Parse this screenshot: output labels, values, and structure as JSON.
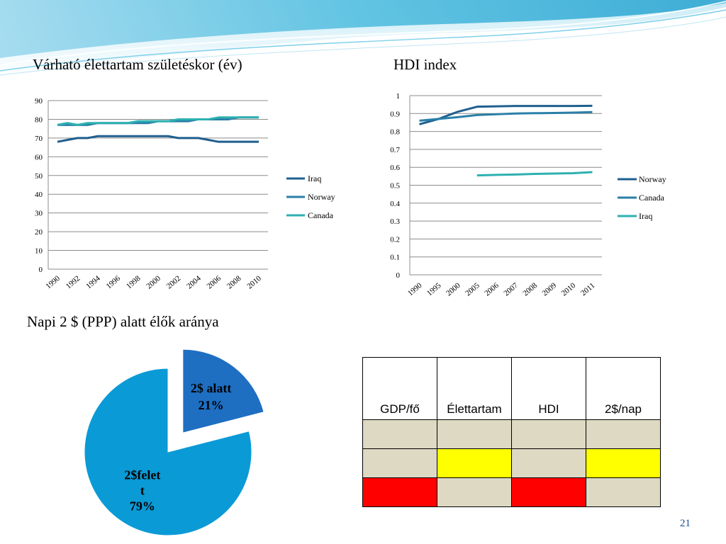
{
  "slide": {
    "title_life": "Várható élettartam születéskor (év)",
    "title_hdi": "HDI index",
    "title_pie": "Napi 2 $ (PPP) alatt élők aránya",
    "page_number": "21"
  },
  "chart_data": [
    {
      "type": "line",
      "xlabel": "",
      "ylabel": "",
      "ylim": [
        0,
        90
      ],
      "yticks": [
        "0",
        "10",
        "20",
        "30",
        "40",
        "50",
        "60",
        "70",
        "80",
        "90"
      ],
      "grid": true,
      "legend_position": "right",
      "x": [
        "1990",
        "1991",
        "1992",
        "1993",
        "1994",
        "1995",
        "1996",
        "1997",
        "1998",
        "1999",
        "2000",
        "2001",
        "2002",
        "2003",
        "2004",
        "2005",
        "2006",
        "2007",
        "2008",
        "2009",
        "2010"
      ],
      "xtick_labels": [
        "1990",
        "1992",
        "1994",
        "1996",
        "1998",
        "2000",
        "2002",
        "2004",
        "2006",
        "2008",
        "2010"
      ],
      "series": [
        {
          "name": "Iraq",
          "color": "#1f5f8f",
          "values": [
            68,
            69,
            70,
            70,
            71,
            71,
            71,
            71,
            71,
            71,
            71,
            71,
            70,
            70,
            70,
            69,
            68,
            68,
            68,
            68,
            68
          ]
        },
        {
          "name": "Norway",
          "color": "#2a7fa8",
          "values": [
            77,
            77,
            77,
            77,
            78,
            78,
            78,
            78,
            78,
            78,
            79,
            79,
            79,
            79,
            80,
            80,
            80,
            80,
            81,
            81,
            81
          ]
        },
        {
          "name": "Canada",
          "color": "#2eb0b0",
          "values": [
            77,
            78,
            77,
            78,
            78,
            78,
            78,
            78,
            79,
            79,
            79,
            79,
            80,
            80,
            80,
            80,
            81,
            81,
            81,
            81,
            81
          ]
        }
      ]
    },
    {
      "type": "line",
      "xlabel": "",
      "ylabel": "",
      "ylim": [
        0,
        1
      ],
      "yticks": [
        "0",
        "0.1",
        "0.2",
        "0.3",
        "0.4",
        "0.5",
        "0.6",
        "0.7",
        "0.8",
        "0.9",
        "1"
      ],
      "grid": true,
      "legend_position": "right",
      "categories": [
        "1990",
        "1995",
        "2000",
        "2005",
        "2006",
        "2007",
        "2008",
        "2009",
        "2010",
        "2011"
      ],
      "series": [
        {
          "name": "Norway",
          "color": "#1f5f8f",
          "values": [
            0.84,
            0.87,
            0.91,
            0.938,
            0.94,
            0.942,
            0.942,
            0.942,
            0.942,
            0.943
          ]
        },
        {
          "name": "Canada",
          "color": "#2a7fa8",
          "values": [
            0.86,
            0.87,
            0.88,
            0.892,
            0.896,
            0.9,
            0.902,
            0.903,
            0.905,
            0.908
          ]
        },
        {
          "name": "Iraq",
          "color": "#2eb0b0",
          "values": [
            null,
            null,
            null,
            0.555,
            0.558,
            0.56,
            0.563,
            0.565,
            0.567,
            0.573
          ]
        }
      ]
    },
    {
      "type": "pie",
      "title": "Napi 2 $ (PPP) alatt élők aránya",
      "slices": [
        {
          "label": "2$ alatt",
          "percent_label": "21%",
          "value": 21,
          "color": "#1e6fc2",
          "exploded": true
        },
        {
          "label": "2$felett",
          "percent_label": "79%",
          "value": 79,
          "color": "#0a9ad6",
          "exploded": false
        }
      ]
    }
  ],
  "table": {
    "headers": [
      "GDP/fő",
      "Élettartam",
      "HDI",
      "2$/nap"
    ],
    "rows": [
      [
        "beige",
        "beige",
        "beige",
        "beige"
      ],
      [
        "beige",
        "yellow",
        "beige",
        "yellow"
      ],
      [
        "red",
        "beige",
        "red",
        "beige"
      ]
    ]
  },
  "colors": {
    "page_number": "#1f4e9a",
    "table_beige": "#ddd9c3",
    "table_yellow": "#ffff00",
    "table_red": "#ff0000"
  }
}
